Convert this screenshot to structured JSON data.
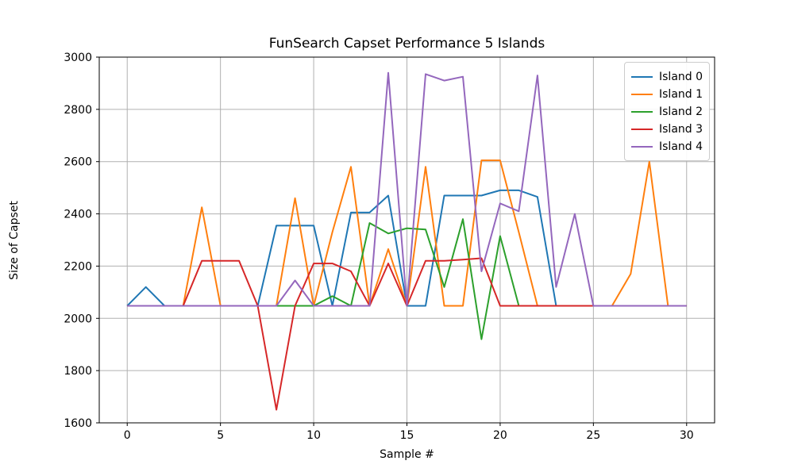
{
  "figure": {
    "background": "#ffffff"
  },
  "chart_data": {
    "type": "line",
    "title": "FunSearch Capset Performance 5 Islands",
    "xlabel": "Sample #",
    "ylabel": "Size of Capset",
    "xlim": [
      -1.5,
      31.5
    ],
    "ylim": [
      1600,
      3000
    ],
    "x_ticks": [
      0,
      5,
      10,
      15,
      20,
      25,
      30
    ],
    "y_ticks": [
      1600,
      1800,
      2000,
      2200,
      2400,
      2600,
      2800,
      3000
    ],
    "grid": true,
    "grid_color": "#b0b0b0",
    "spine_color": "#000000",
    "legend_position": "upper right",
    "x": [
      0,
      1,
      2,
      3,
      4,
      5,
      6,
      7,
      8,
      9,
      10,
      11,
      12,
      13,
      14,
      15,
      16,
      17,
      18,
      19,
      20,
      21,
      22,
      23,
      24,
      25,
      26,
      27,
      28,
      29,
      30
    ],
    "series": [
      {
        "name": "Island 0",
        "color": "#1f77b4",
        "values": [
          2048,
          2120,
          2048,
          2048,
          2048,
          2048,
          2048,
          2048,
          2355,
          2355,
          2355,
          2048,
          2405,
          2405,
          2470,
          2048,
          2048,
          2470,
          2470,
          2470,
          2490,
          2490,
          2465,
          2048,
          2048,
          2048,
          2048,
          2048,
          2048,
          2048,
          2048
        ]
      },
      {
        "name": "Island 1",
        "color": "#ff7f0e",
        "values": [
          2048,
          2048,
          2048,
          2048,
          2425,
          2048,
          2048,
          2048,
          2048,
          2460,
          2048,
          2330,
          2580,
          2048,
          2265,
          2048,
          2580,
          2048,
          2048,
          2605,
          2605,
          2330,
          2048,
          2048,
          2048,
          2048,
          2048,
          2170,
          2600,
          2048,
          2048
        ]
      },
      {
        "name": "Island 2",
        "color": "#2ca02c",
        "values": [
          2048,
          2048,
          2048,
          2048,
          2048,
          2048,
          2048,
          2048,
          2048,
          2048,
          2048,
          2085,
          2048,
          2365,
          2325,
          2345,
          2340,
          2120,
          2380,
          1920,
          2315,
          2048,
          2048,
          2048,
          2048,
          2048,
          2048,
          2048,
          2048,
          2048,
          2048
        ]
      },
      {
        "name": "Island 3",
        "color": "#d62728",
        "values": [
          2048,
          2048,
          2048,
          2048,
          2220,
          2220,
          2220,
          2048,
          1650,
          2048,
          2210,
          2210,
          2180,
          2048,
          2210,
          2048,
          2220,
          2220,
          2225,
          2230,
          2048,
          2048,
          2048,
          2048,
          2048,
          2048,
          2048,
          2048,
          2048,
          2048,
          2048
        ]
      },
      {
        "name": "Island 4",
        "color": "#9467bd",
        "values": [
          2048,
          2048,
          2048,
          2048,
          2048,
          2048,
          2048,
          2048,
          2048,
          2145,
          2048,
          2048,
          2048,
          2048,
          2940,
          2048,
          2935,
          2910,
          2925,
          2180,
          2440,
          2410,
          2930,
          2120,
          2400,
          2048,
          2048,
          2048,
          2048,
          2048,
          2048
        ]
      }
    ]
  }
}
